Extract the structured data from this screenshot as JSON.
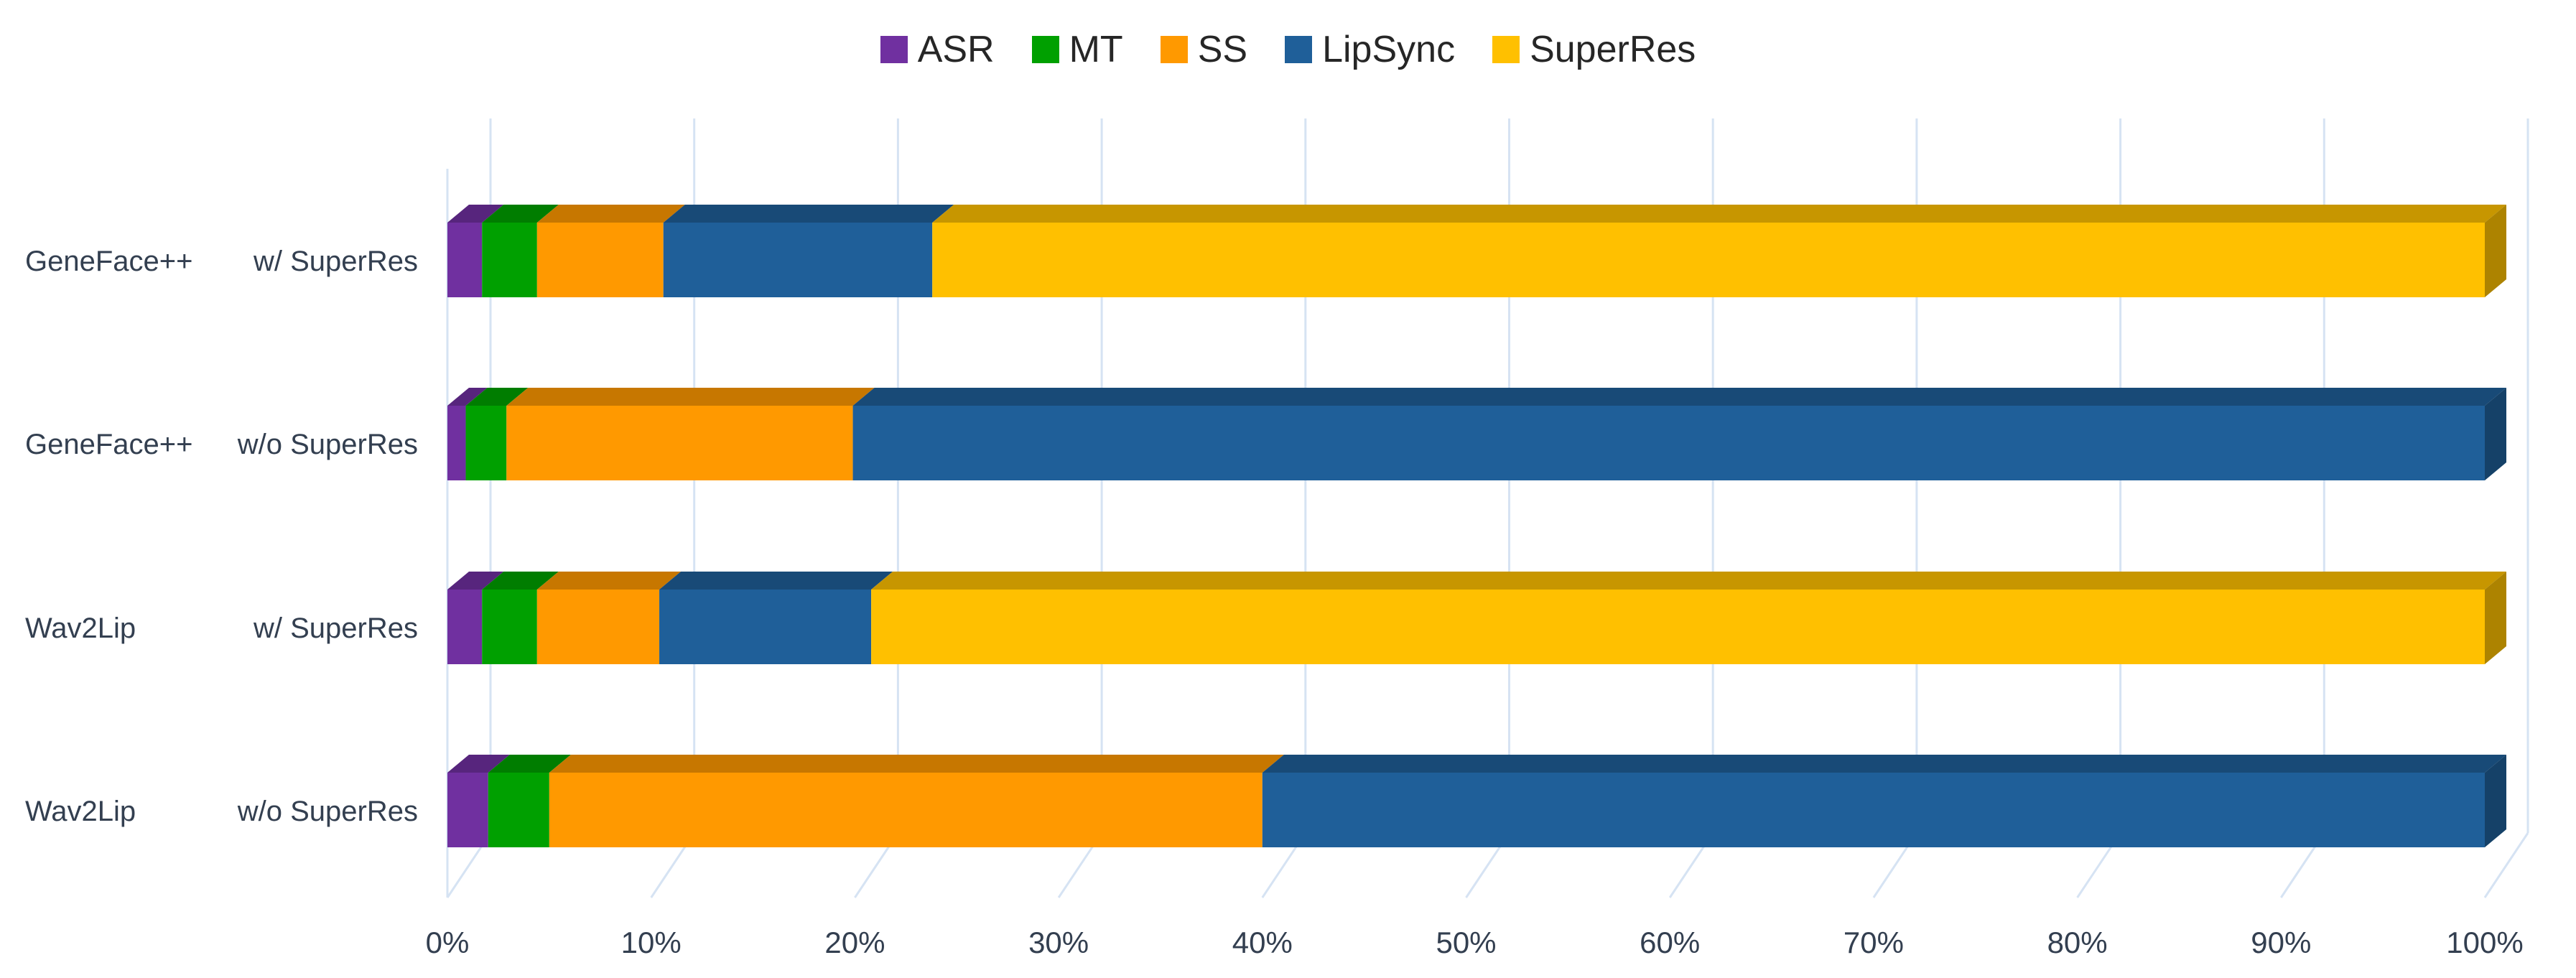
{
  "chart_data": {
    "type": "bar",
    "orientation": "horizontal",
    "stacked": "percent",
    "style": "3d",
    "categories": [
      [
        "GeneFace++",
        "w/ SuperRes"
      ],
      [
        "GeneFace++",
        "w/o SuperRes"
      ],
      [
        "Wav2Lip",
        "w/ SuperRes"
      ],
      [
        "Wav2Lip",
        "w/o SuperRes"
      ]
    ],
    "series": [
      {
        "name": "ASR",
        "color": "#7030A0",
        "values": [
          1.7,
          0.9,
          1.7,
          2.0
        ]
      },
      {
        "name": "MT",
        "color": "#00A000",
        "values": [
          2.7,
          2.0,
          2.7,
          3.0
        ]
      },
      {
        "name": "SS",
        "color": "#FF9900",
        "values": [
          6.2,
          17.0,
          6.0,
          35.0
        ]
      },
      {
        "name": "LipSync",
        "color": "#1F5F99",
        "values": [
          13.2,
          80.1,
          10.4,
          60.0
        ]
      },
      {
        "name": "SuperRes",
        "color": "#FFC000",
        "values": [
          76.2,
          0.0,
          79.2,
          0.0
        ]
      }
    ],
    "xlim": [
      0,
      100
    ],
    "x_ticks": [
      "0%",
      "10%",
      "20%",
      "30%",
      "40%",
      "50%",
      "60%",
      "70%",
      "80%",
      "90%",
      "100%"
    ],
    "grid": true,
    "legend_position": "top"
  }
}
